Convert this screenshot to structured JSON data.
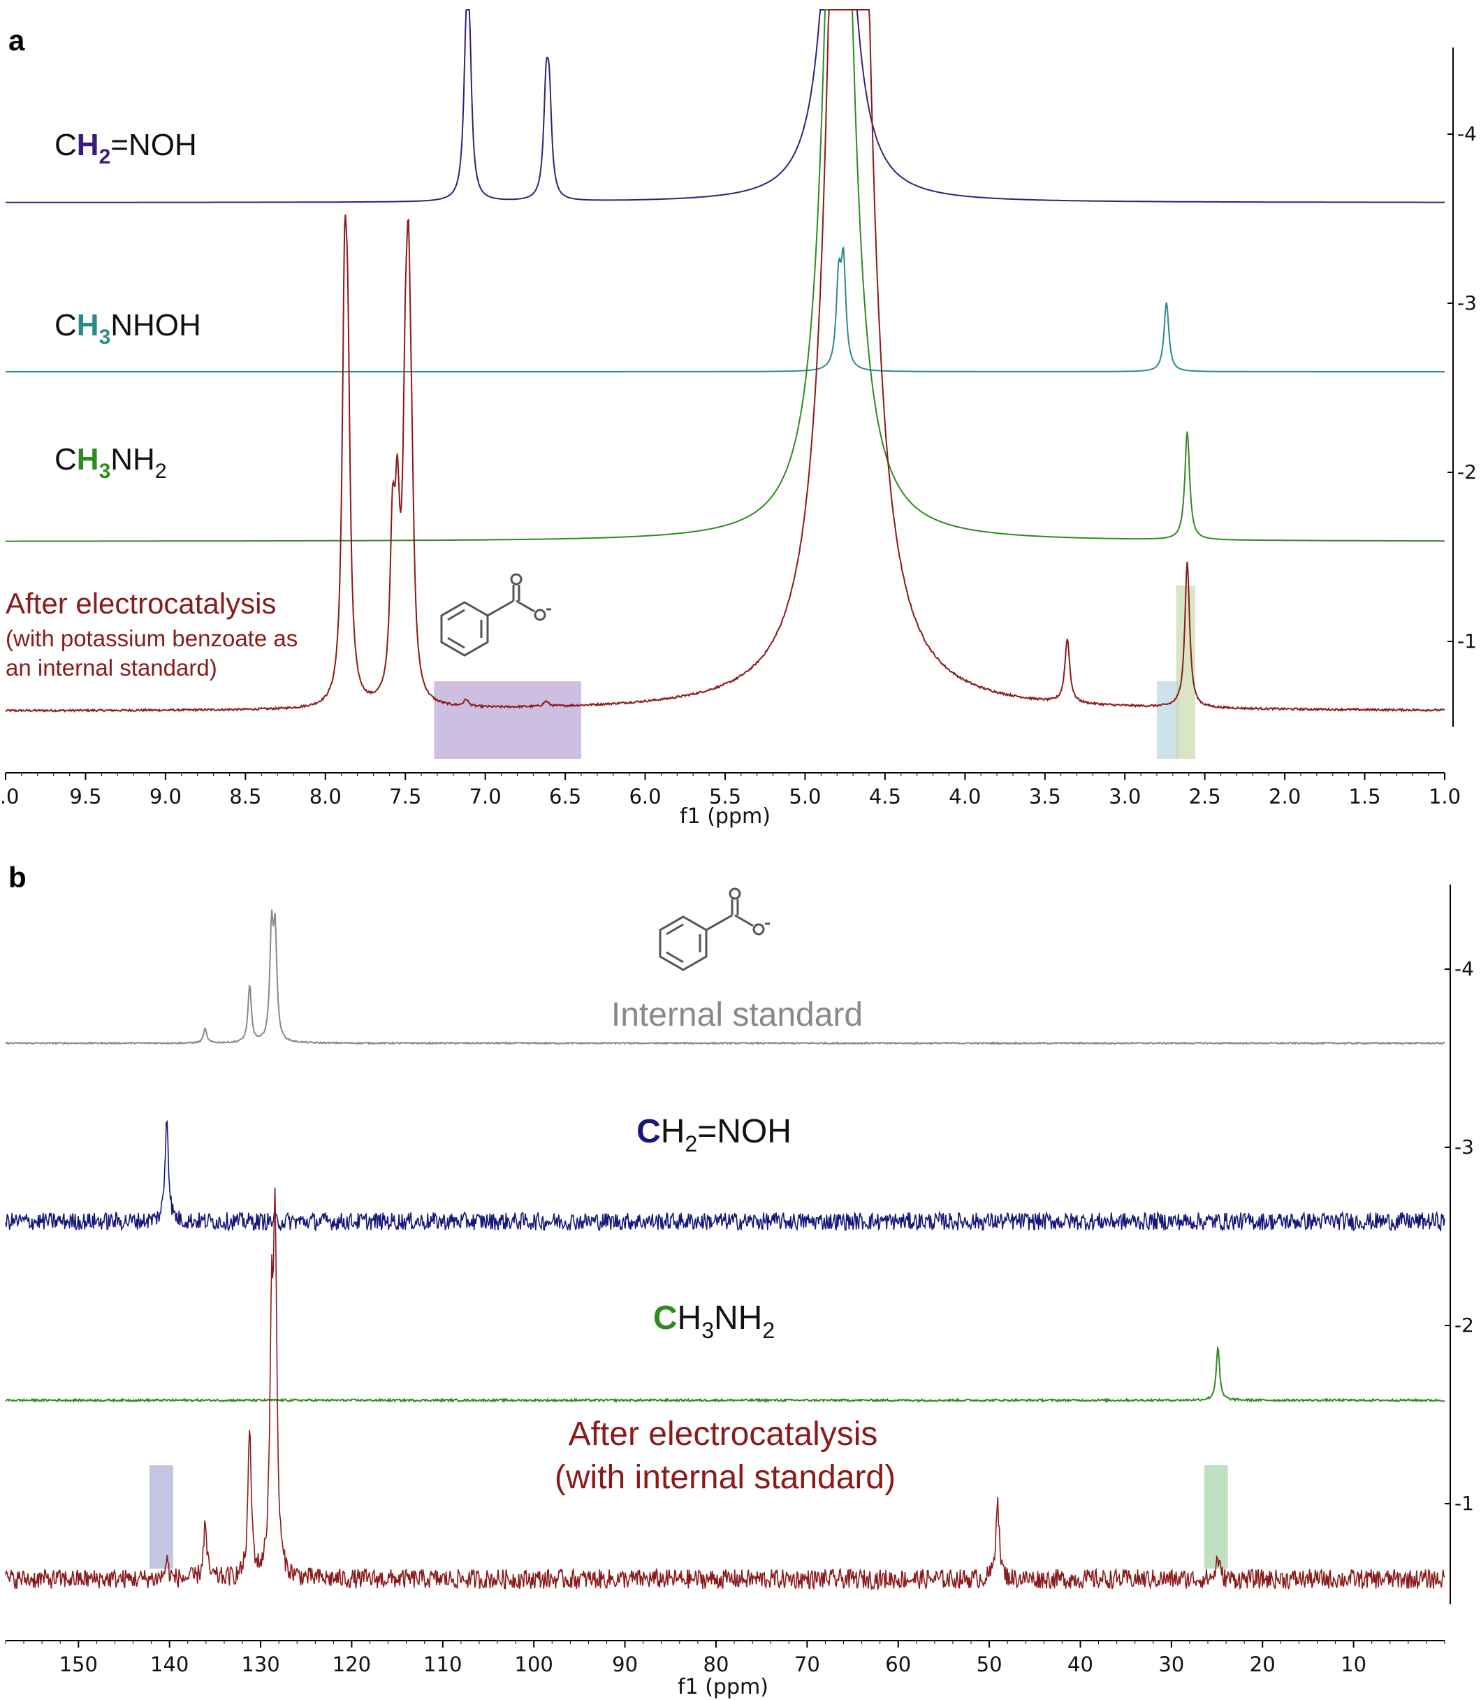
{
  "colors": {
    "purple": "#3a1d7a",
    "teal": "#2b8a8a",
    "green": "#2e8b1f",
    "darkred": "#8b1a1a",
    "navy": "#14187a",
    "gray": "#888888",
    "hl_purple": "#b8a4d6",
    "hl_teal": "#b7d8df",
    "hl_green": "#c9dcad",
    "hl_blue": "#a9acd6",
    "hl_green2": "#a6d3a6"
  },
  "chart_data": [
    {
      "panel_label": "a",
      "type": "line",
      "xlabel": "f1 (ppm)",
      "xlim": [
        10.0,
        1.0
      ],
      "x_ticks": [
        ").0",
        "9.5",
        "9.0",
        "8.5",
        "8.0",
        "7.5",
        "7.0",
        "6.5",
        "6.0",
        "5.5",
        "5.0",
        "4.5",
        "4.0",
        "3.5",
        "3.0",
        "2.5",
        "2.0",
        "1.5",
        "1.0"
      ],
      "y_ticks": [
        "1",
        "2",
        "3",
        "4"
      ],
      "series": [
        {
          "name": "CH2=NOH",
          "label_parts": {
            "a": "C",
            "b": "H",
            "sub": "2",
            "c": "=NOH"
          },
          "color": "#3a1d7a",
          "noise": 0,
          "peaks": [
            {
              "ppm": 7.12,
              "h": 0.77
            },
            {
              "ppm": 7.1,
              "h": 0.81
            },
            {
              "ppm": 6.62,
              "h": 0.57
            },
            {
              "ppm": 6.6,
              "h": 0.54
            },
            {
              "ppm": 4.82,
              "h": 0.4
            },
            {
              "ppm": 4.79,
              "h": 3.0
            }
          ]
        },
        {
          "name": "CH3NHOH",
          "label_parts": {
            "a": "C",
            "b": "H",
            "sub": "3",
            "c": "NHOH"
          },
          "color": "#2b8a8a",
          "noise": 0,
          "peaks": [
            {
              "ppm": 4.79,
              "h": 0.5
            },
            {
              "ppm": 4.76,
              "h": 0.6
            },
            {
              "ppm": 2.74,
              "h": 0.41
            }
          ]
        },
        {
          "name": "CH3NH2",
          "label_parts": {
            "a": "C",
            "b": "H",
            "sub": "3",
            "c": "NH",
            "sub2": "2"
          },
          "color": "#2e8b1f",
          "noise": 0,
          "peaks": [
            {
              "ppm": 4.79,
              "h": 6.0
            },
            {
              "ppm": 2.61,
              "h": 0.64
            }
          ]
        },
        {
          "name": "After electrocatalysis",
          "label_line2": "(with potassium benzoate as",
          "label_line3": "an internal standard)",
          "color": "#8b1a1a",
          "noise": 0.006,
          "peaks": [
            {
              "ppm": 7.88,
              "h": 2.12
            },
            {
              "ppm": 7.86,
              "h": 1.6
            },
            {
              "ppm": 7.58,
              "h": 0.92
            },
            {
              "ppm": 7.55,
              "h": 0.96
            },
            {
              "ppm": 7.5,
              "h": 1.34
            },
            {
              "ppm": 7.48,
              "h": 1.88
            },
            {
              "ppm": 7.46,
              "h": 0.72
            },
            {
              "ppm": 7.12,
              "h": 0.04
            },
            {
              "ppm": 6.62,
              "h": 0.03
            },
            {
              "ppm": 4.75,
              "h": 6.0
            },
            {
              "ppm": 4.7,
              "h": 6.0
            },
            {
              "ppm": 3.36,
              "h": 0.38
            },
            {
              "ppm": 2.61,
              "h": 0.86
            }
          ]
        }
      ],
      "highlights": [
        {
          "x_from": 7.32,
          "x_to": 6.4,
          "color": "#b8a4d6"
        },
        {
          "x_from": 2.8,
          "x_to": 2.66,
          "color": "#b7d8df"
        },
        {
          "x_from": 2.68,
          "x_to": 2.56,
          "color": "#c9dcad"
        }
      ]
    },
    {
      "panel_label": "b",
      "type": "line",
      "xlabel": "f1 (ppm)",
      "xlim": [
        158,
        0
      ],
      "x_ticks": [
        "150",
        "140",
        "130",
        "120",
        "110",
        "100",
        "90",
        "80",
        "70",
        "60",
        "50",
        "40",
        "30",
        "20",
        "10"
      ],
      "y_ticks": [
        "1",
        "2",
        "3",
        "4"
      ],
      "series": [
        {
          "name": "Internal standard",
          "color": "#888888",
          "noise": 0.004,
          "peaks": [
            {
              "ppm": 136.1,
              "h": 0.08
            },
            {
              "ppm": 131.2,
              "h": 0.32
            },
            {
              "ppm": 128.8,
              "h": 0.61
            },
            {
              "ppm": 128.4,
              "h": 0.58
            }
          ]
        },
        {
          "name": "CH2=NOH",
          "label_parts": {
            "a": "C",
            "b": "H",
            "sub": "2",
            "c": "=NOH"
          },
          "color": "#14187a",
          "noise": 0.05,
          "peaks": [
            {
              "ppm": 140.3,
              "h": 0.6
            }
          ]
        },
        {
          "name": "CH3NH2",
          "label_parts": {
            "a": "C",
            "b": "H",
            "sub": "3",
            "c": "NH",
            "sub2": "2"
          },
          "color": "#2e8b1f",
          "noise": 0.006,
          "peaks": [
            {
              "ppm": 24.9,
              "h": 0.3
            }
          ]
        },
        {
          "name": "After electrocatalysis",
          "label_line2": "(with internal standard)",
          "color": "#8b1a1a",
          "noise": 0.055,
          "peaks": [
            {
              "ppm": 140.3,
              "h": 0.1
            },
            {
              "ppm": 136.1,
              "h": 0.3
            },
            {
              "ppm": 131.2,
              "h": 0.82
            },
            {
              "ppm": 128.8,
              "h": 1.34
            },
            {
              "ppm": 128.4,
              "h": 1.84
            },
            {
              "ppm": 49.1,
              "h": 0.46
            },
            {
              "ppm": 24.9,
              "h": 0.12
            }
          ]
        }
      ],
      "highlights": [
        {
          "x_from": 142.2,
          "x_to": 139.6,
          "color": "#a9acd6"
        },
        {
          "x_from": 26.4,
          "x_to": 23.8,
          "color": "#a6d3a6"
        }
      ]
    }
  ]
}
